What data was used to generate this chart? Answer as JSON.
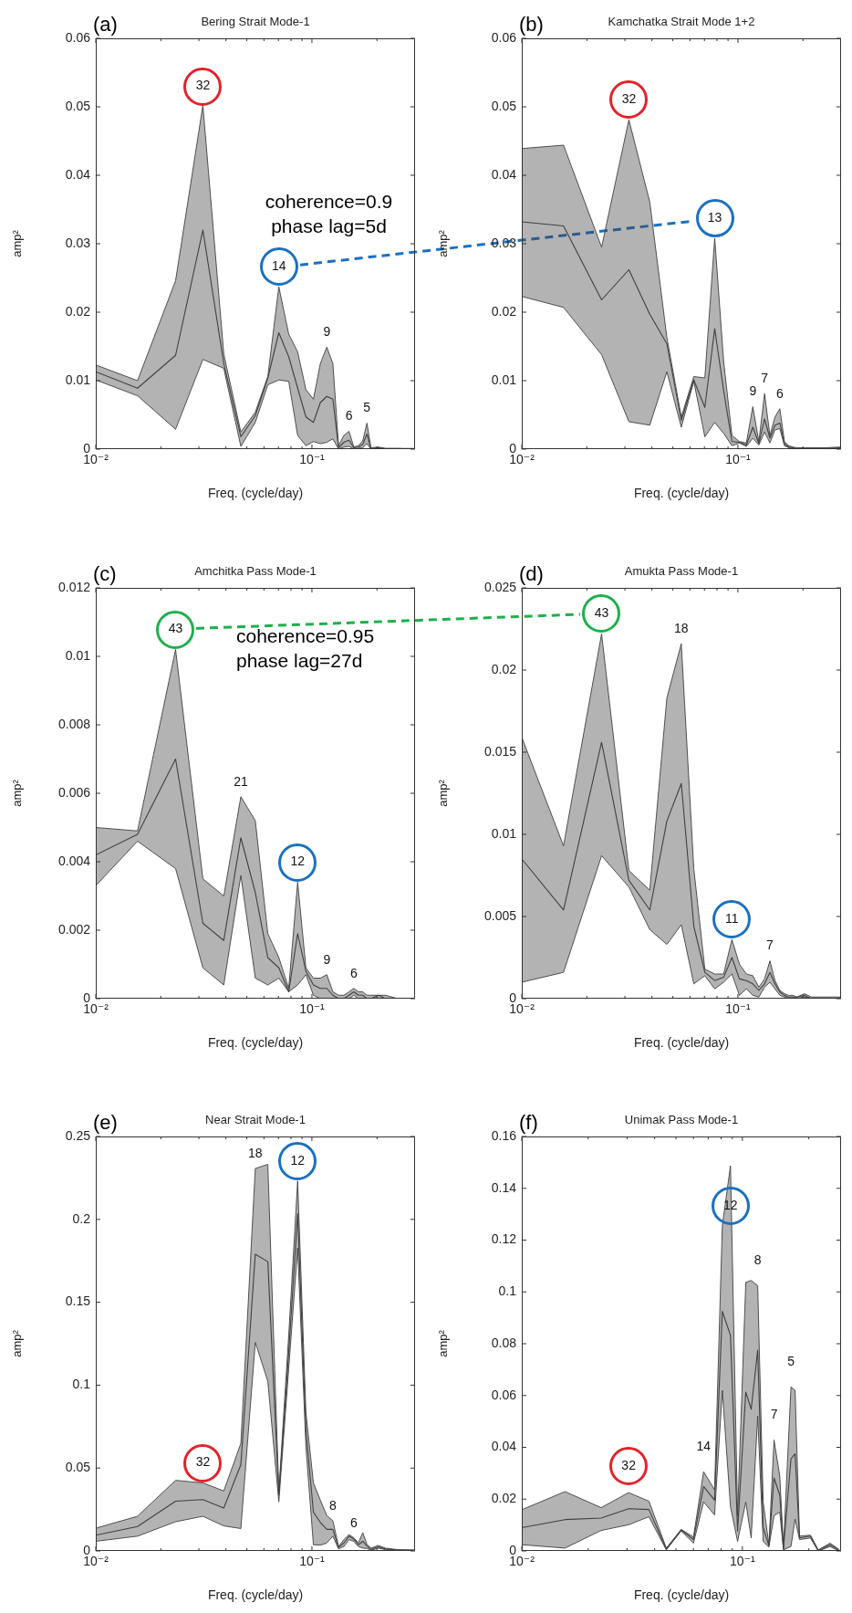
{
  "chart_data": [
    {
      "type": "line",
      "title": "Bering Strait Mode-1",
      "xlabel": "Freq. (cycle/day)",
      "ylabel": "amp²",
      "log": "x",
      "marker": "none",
      "xlim": [
        0.01,
        0.3
      ],
      "xticks": [
        {
          "value": 0.01,
          "label": "10⁻²"
        },
        {
          "value": 0.02,
          "label": null
        },
        {
          "value": 0.03,
          "label": null
        },
        {
          "value": 0.04,
          "label": null
        },
        {
          "value": 0.05,
          "label": null
        },
        {
          "value": 0.06,
          "label": null
        },
        {
          "value": 0.07,
          "label": null
        },
        {
          "value": 0.08,
          "label": null
        },
        {
          "value": 0.09,
          "label": null
        },
        {
          "value": 0.1,
          "label": "10⁻¹"
        },
        {
          "value": 0.2,
          "label": null
        }
      ],
      "ylim": [
        0,
        0.06
      ],
      "yticks": [
        0,
        0.01,
        0.02,
        0.03,
        0.04,
        0.05,
        0.06
      ],
      "x": [
        0.01,
        0.0156,
        0.0234,
        0.0313,
        0.0391,
        0.0469,
        0.0547,
        0.0625,
        0.0703,
        0.0781,
        0.0859,
        0.0938,
        0.1016,
        0.1094,
        0.1172,
        0.125,
        0.1328,
        0.1406,
        0.1484,
        0.1563,
        0.1641,
        0.1719,
        0.1797,
        0.1875,
        0.2031,
        0.2188,
        0.25,
        0.2969
      ],
      "series": [
        {
          "color": "#404040",
          "values": [
            0.0113,
            0.0089,
            0.0137,
            0.032,
            0.0125,
            0.0018,
            0.0049,
            0.0104,
            0.017,
            0.0135,
            0.0089,
            0.0047,
            0.0039,
            0.0068,
            0.0077,
            0.0073,
            0.0002,
            0.001,
            0.0013,
            0.0002,
            0.0003,
            0.0007,
            0.0022,
            0.0001,
            0.0002,
            0.0001,
            0.0001,
            0
          ],
          "upper": [
            0.0123,
            0.01,
            0.0246,
            0.0502,
            0.0139,
            0.0025,
            0.0054,
            0.0106,
            0.0237,
            0.0168,
            0.0142,
            0.0087,
            0.0073,
            0.0125,
            0.0149,
            0.0125,
            0.0005,
            0.002,
            0.0026,
            0.0003,
            0.0005,
            0.0012,
            0.0038,
            0.0002,
            0.0003,
            0.0001,
            0.0001,
            0.0001
          ],
          "lower": [
            0.0101,
            0.0078,
            0.0029,
            0.0131,
            0.0118,
            0.0004,
            0.0039,
            0.0094,
            0.0101,
            0.0099,
            0.002,
            0.0005,
            0.0011,
            0.0008,
            0.001,
            0.0015,
            0,
            0.0003,
            0.0004,
            0,
            0.0001,
            0.0002,
            0.0008,
            0,
            0.0001,
            0,
            0,
            0
          ]
        }
      ],
      "annotations": [
        "(a)",
        {
          "text": "32",
          "x": 0.0313,
          "y": 0.0502
        },
        {
          "text": "14",
          "x": 0.0703,
          "y": 0.0237
        },
        {
          "text": "9",
          "x": 0.1172,
          "y": 0.0149
        },
        {
          "text": "6",
          "x": 0.1484,
          "y": 0.0026
        },
        {
          "text": "5",
          "x": 0.1797,
          "y": 0.0038
        },
        "coherence=0.9",
        "phase lag=5d"
      ]
    },
    {
      "type": "line",
      "title": "Kamchatka Strait Mode 1+2",
      "xlabel": "Freq. (cycle/day)",
      "ylabel": "amp²",
      "log": "x",
      "marker": "none",
      "xlim": [
        0.01,
        0.3
      ],
      "xticks": [
        {
          "value": 0.01,
          "label": "10⁻²"
        },
        {
          "value": 0.02,
          "label": null
        },
        {
          "value": 0.03,
          "label": null
        },
        {
          "value": 0.04,
          "label": null
        },
        {
          "value": 0.05,
          "label": null
        },
        {
          "value": 0.06,
          "label": null
        },
        {
          "value": 0.07,
          "label": null
        },
        {
          "value": 0.08,
          "label": null
        },
        {
          "value": 0.09,
          "label": null
        },
        {
          "value": 0.1,
          "label": "10⁻¹"
        },
        {
          "value": 0.2,
          "label": null
        }
      ],
      "ylim": [
        0,
        0.06
      ],
      "yticks": [
        0,
        0.01,
        0.02,
        0.03,
        0.04,
        0.05,
        0.06
      ],
      "x": [
        0.01,
        0.0156,
        0.0234,
        0.0313,
        0.0391,
        0.0469,
        0.0547,
        0.0625,
        0.0703,
        0.0781,
        0.0859,
        0.0938,
        0.1016,
        0.1094,
        0.1172,
        0.125,
        0.1328,
        0.1406,
        0.1484,
        0.1563,
        0.1641,
        0.1719,
        0.1797,
        0.1875,
        0.2031,
        0.2188,
        0.25,
        0.2969
      ],
      "series": [
        {
          "color": "#404040",
          "values": [
            0.0332,
            0.0326,
            0.0218,
            0.0262,
            0.0197,
            0.0154,
            0.0042,
            0.0101,
            0.0061,
            0.0176,
            0.0085,
            0.0011,
            0.001,
            0.0006,
            0.0032,
            0.0008,
            0.0044,
            0.0016,
            0.0035,
            0.0038,
            0.0008,
            0.0003,
            0.0002,
            0.0001,
            0.0001,
            0.0001,
            0.0001,
            0.0002
          ],
          "upper": [
            0.0439,
            0.0444,
            0.0295,
            0.0481,
            0.0361,
            0.0163,
            0.0047,
            0.0106,
            0.0104,
            0.0308,
            0.0128,
            0.002,
            0.0011,
            0.0009,
            0.0062,
            0.0011,
            0.0081,
            0.002,
            0.0047,
            0.0059,
            0.0011,
            0.0005,
            0.0003,
            0.0002,
            0.0002,
            0.0002,
            0.0002,
            0.0003
          ],
          "lower": [
            0.0223,
            0.0207,
            0.0138,
            0.004,
            0.0035,
            0.0113,
            0.0032,
            0.0099,
            0.0018,
            0.0039,
            0.0023,
            0.0005,
            0.0009,
            0.0004,
            0.0016,
            0.0006,
            0.0025,
            0.0009,
            0.0028,
            0.003,
            0.0005,
            0.0002,
            0.0001,
            0,
            0,
            0,
            0,
            0.0001
          ]
        }
      ],
      "annotations": [
        "(b)",
        {
          "text": "32",
          "x": 0.0313,
          "y": 0.0481
        },
        {
          "text": "13",
          "x": 0.0781,
          "y": 0.0308
        },
        {
          "text": "9",
          "x": 0.1172,
          "y": 0.0062
        },
        {
          "text": "7",
          "x": 0.1328,
          "y": 0.0081
        },
        {
          "text": "6",
          "x": 0.1563,
          "y": 0.0059
        }
      ]
    },
    {
      "type": "line",
      "title": "Amchitka Pass Mode-1",
      "xlabel": "Freq. (cycle/day)",
      "ylabel": "amp²",
      "log": "x",
      "marker": "none",
      "xlim": [
        0.01,
        0.3
      ],
      "xticks": [
        {
          "value": 0.01,
          "label": "10⁻²"
        },
        {
          "value": 0.02,
          "label": null
        },
        {
          "value": 0.03,
          "label": null
        },
        {
          "value": 0.04,
          "label": null
        },
        {
          "value": 0.05,
          "label": null
        },
        {
          "value": 0.06,
          "label": null
        },
        {
          "value": 0.07,
          "label": null
        },
        {
          "value": 0.08,
          "label": null
        },
        {
          "value": 0.09,
          "label": null
        },
        {
          "value": 0.1,
          "label": "10⁻¹"
        },
        {
          "value": 0.2,
          "label": null
        }
      ],
      "ylim": [
        0,
        0.012
      ],
      "yticks": [
        0,
        0.002,
        0.004,
        0.006,
        0.008,
        0.01,
        0.012
      ],
      "x": [
        0.01,
        0.0156,
        0.0234,
        0.0313,
        0.0391,
        0.0469,
        0.0547,
        0.0625,
        0.0703,
        0.0781,
        0.0859,
        0.0938,
        0.1016,
        0.1094,
        0.1172,
        0.125,
        0.1328,
        0.1406,
        0.1484,
        0.1563,
        0.1641,
        0.1719,
        0.1797,
        0.1875,
        0.2031,
        0.2188,
        0.25,
        0.2969
      ],
      "series": [
        {
          "color": "#404040",
          "values": [
            0.0042,
            0.0048,
            0.007,
            0.0022,
            0.0017,
            0.0047,
            0.0031,
            0.0012,
            0.0009,
            0.0002,
            0.0019,
            0.0008,
            0.0004,
            0.0003,
            0.0003,
            0.0001,
            0,
            0,
            0.0001,
            0.0002,
            0.0001,
            0.0001,
            0,
            0,
            0.0001,
            0,
            0,
            0
          ],
          "upper": [
            0.005,
            0.0049,
            0.0102,
            0.0035,
            0.003,
            0.0059,
            0.0052,
            0.0019,
            0.0012,
            0.0003,
            0.0034,
            0.0009,
            0.0006,
            0.0006,
            0.0007,
            0.0002,
            0.0001,
            0.0001,
            0.0002,
            0.0003,
            0.0002,
            0.0002,
            0.0001,
            0.0001,
            0.0001,
            0.0001,
            0,
            0
          ],
          "lower": [
            0.0033,
            0.0046,
            0.0038,
            0.0009,
            0.0004,
            0.0036,
            0.0006,
            0.0004,
            0.0006,
            0.0002,
            0.0004,
            0.0007,
            0.0001,
            0,
            0,
            0,
            0,
            0,
            0,
            0.0001,
            0,
            0,
            0,
            0,
            0,
            0,
            0,
            0
          ]
        }
      ],
      "annotations": [
        "(c)",
        {
          "text": "43",
          "x": 0.0234,
          "y": 0.0102
        },
        {
          "text": "21",
          "x": 0.0469,
          "y": 0.0059
        },
        {
          "text": "12",
          "x": 0.0859,
          "y": 0.0034
        },
        {
          "text": "9",
          "x": 0.1172,
          "y": 0.0007
        },
        {
          "text": "6",
          "x": 0.1563,
          "y": 0.0003
        },
        "coherence=0.95",
        "phase lag=27d"
      ]
    },
    {
      "type": "line",
      "title": "Amukta Pass Mode-1",
      "xlabel": "Freq. (cycle/day)",
      "ylabel": "amp²",
      "log": "x",
      "marker": "none",
      "xlim": [
        0.01,
        0.3
      ],
      "xticks": [
        {
          "value": 0.01,
          "label": "10⁻²"
        },
        {
          "value": 0.02,
          "label": null
        },
        {
          "value": 0.03,
          "label": null
        },
        {
          "value": 0.04,
          "label": null
        },
        {
          "value": 0.05,
          "label": null
        },
        {
          "value": 0.06,
          "label": null
        },
        {
          "value": 0.07,
          "label": null
        },
        {
          "value": 0.08,
          "label": null
        },
        {
          "value": 0.09,
          "label": null
        },
        {
          "value": 0.1,
          "label": "10⁻¹"
        },
        {
          "value": 0.2,
          "label": null
        }
      ],
      "ylim": [
        0,
        0.025
      ],
      "yticks": [
        0,
        0.005,
        0.01,
        0.015,
        0.02,
        0.025
      ],
      "x": [
        0.01,
        0.0156,
        0.0234,
        0.0313,
        0.0391,
        0.0469,
        0.0547,
        0.0625,
        0.0703,
        0.0781,
        0.0859,
        0.0938,
        0.1016,
        0.1094,
        0.1172,
        0.125,
        0.1328,
        0.1406,
        0.1484,
        0.1563,
        0.1641,
        0.1719,
        0.1797,
        0.1875,
        0.2031,
        0.2188,
        0.25,
        0.2969
      ],
      "series": [
        {
          "color": "#404040",
          "values": [
            0.0085,
            0.0054,
            0.0156,
            0.0072,
            0.0054,
            0.0108,
            0.0131,
            0.0044,
            0.0016,
            0.0011,
            0.0013,
            0.0025,
            0.0012,
            0.0011,
            0.0009,
            0.0005,
            0.0009,
            0.0016,
            0.0009,
            0.0004,
            0.0002,
            0.0001,
            0.0001,
            0.0001,
            0.0002,
            0,
            0,
            0
          ],
          "upper": [
            0.0159,
            0.0093,
            0.0222,
            0.0078,
            0.0066,
            0.0183,
            0.0216,
            0.0079,
            0.0018,
            0.0015,
            0.0015,
            0.0036,
            0.0021,
            0.0015,
            0.0014,
            0.0007,
            0.0012,
            0.0023,
            0.0011,
            0.0005,
            0.0003,
            0.0002,
            0.0002,
            0.0001,
            0.0003,
            0.0001,
            0.0001,
            0.0001
          ],
          "lower": [
            0.001,
            0.0016,
            0.0087,
            0.0068,
            0.0042,
            0.0033,
            0.0045,
            0.0009,
            0.0014,
            0.0006,
            0.001,
            0.0015,
            0.0002,
            0.0006,
            0.0002,
            0.0001,
            0.0007,
            0.001,
            0.0006,
            0.0002,
            0.0001,
            0,
            0,
            0,
            0.0001,
            0,
            0,
            0
          ]
        }
      ],
      "annotations": [
        "(d)",
        {
          "text": "43",
          "x": 0.0234,
          "y": 0.0222
        },
        {
          "text": "18",
          "x": 0.0547,
          "y": 0.0216
        },
        {
          "text": "11",
          "x": 0.0938,
          "y": 0.0036
        },
        {
          "text": "7",
          "x": 0.1406,
          "y": 0.0023
        }
      ]
    },
    {
      "type": "line",
      "title": "Near Strait Mode-1",
      "xlabel": "Freq. (cycle/day)",
      "ylabel": "amp²",
      "log": "x",
      "marker": "none",
      "xlim": [
        0.01,
        0.3
      ],
      "xticks": [
        {
          "value": 0.01,
          "label": "10⁻²"
        },
        {
          "value": 0.02,
          "label": null
        },
        {
          "value": 0.03,
          "label": null
        },
        {
          "value": 0.04,
          "label": null
        },
        {
          "value": 0.05,
          "label": null
        },
        {
          "value": 0.06,
          "label": null
        },
        {
          "value": 0.07,
          "label": null
        },
        {
          "value": 0.08,
          "label": null
        },
        {
          "value": 0.09,
          "label": null
        },
        {
          "value": 0.1,
          "label": "10⁻¹"
        },
        {
          "value": 0.2,
          "label": null
        }
      ],
      "ylim": [
        0,
        0.25
      ],
      "yticks": [
        0,
        0.05,
        0.1,
        0.15,
        0.2,
        0.25
      ],
      "x": [
        0.01,
        0.0156,
        0.0234,
        0.0313,
        0.0391,
        0.0469,
        0.0547,
        0.0625,
        0.0703,
        0.0781,
        0.0859,
        0.0938,
        0.1016,
        0.1094,
        0.1172,
        0.125,
        0.1328,
        0.1406,
        0.1484,
        0.1563,
        0.1641,
        0.1719,
        0.1797,
        0.1875,
        0.2031,
        0.2188,
        0.25,
        0.2969
      ],
      "series": [
        {
          "color": "#404040",
          "values": [
            0.0095,
            0.0147,
            0.03,
            0.031,
            0.0259,
            0.052,
            0.179,
            0.1745,
            0.0337,
            0.12,
            0.2034,
            0.073,
            0.0234,
            0.0172,
            0.013,
            0.013,
            0.0021,
            0.0048,
            0.0089,
            0.0072,
            0.0037,
            0.0058,
            0.003,
            0.001,
            0.0025,
            0.0012,
            0.0004,
            0.0004
          ],
          "upper": [
            0.0137,
            0.0209,
            0.0426,
            0.041,
            0.0362,
            0.0648,
            0.2307,
            0.2332,
            0.0358,
            0.13,
            0.2231,
            0.0834,
            0.041,
            0.0306,
            0.0213,
            0.0182,
            0.0027,
            0.0068,
            0.0099,
            0.0079,
            0.0048,
            0.011,
            0.004,
            0.0017,
            0.0033,
            0.0017,
            0.0008,
            0.0006
          ],
          "lower": [
            0.0058,
            0.0089,
            0.0176,
            0.0209,
            0.0151,
            0.0135,
            0.1258,
            0.1024,
            0.0296,
            0.11,
            0.1827,
            0.0627,
            0.0037,
            0.0035,
            0.0048,
            0.0089,
            0.0012,
            0.0027,
            0.0068,
            0.0058,
            0.0027,
            0.0017,
            0.0015,
            0.0004,
            0.0017,
            0.0008,
            0.0002,
            0.0002
          ]
        }
      ],
      "annotations": [
        "(e)",
        {
          "text": "18",
          "x": 0.0547,
          "y": 0.2307
        },
        {
          "text": "12",
          "x": 0.0859,
          "y": 0.2231
        },
        {
          "text": "32",
          "x": 0.0313,
          "y": 0.041
        },
        {
          "text": "8",
          "x": 0.125,
          "y": 0.0182
        },
        {
          "text": "6",
          "x": 0.1563,
          "y": 0.0079
        }
      ]
    },
    {
      "type": "line",
      "title": "Unimak Pass Mode-1",
      "xlabel": "Freq. (cycle/day)",
      "ylabel": "amp²",
      "log": "x",
      "marker": "none",
      "xlim": [
        0.01,
        0.28
      ],
      "xticks": [
        {
          "value": 0.01,
          "label": "10⁻²"
        },
        {
          "value": 0.02,
          "label": null
        },
        {
          "value": 0.03,
          "label": null
        },
        {
          "value": 0.04,
          "label": null
        },
        {
          "value": 0.05,
          "label": null
        },
        {
          "value": 0.06,
          "label": null
        },
        {
          "value": 0.07,
          "label": null
        },
        {
          "value": 0.08,
          "label": null
        },
        {
          "value": 0.09,
          "label": null
        },
        {
          "value": 0.1,
          "label": "10⁻¹"
        },
        {
          "value": 0.2,
          "label": null
        }
      ],
      "ylim": [
        0,
        0.16
      ],
      "yticks": [
        0,
        0.02,
        0.04,
        0.06,
        0.08,
        0.1,
        0.12,
        0.14,
        0.16
      ],
      "x": [
        0.01,
        0.0157,
        0.0229,
        0.0305,
        0.0377,
        0.0452,
        0.0528,
        0.06,
        0.0667,
        0.0748,
        0.0811,
        0.0883,
        0.0951,
        0.1036,
        0.1096,
        0.1173,
        0.1242,
        0.1319,
        0.1391,
        0.1477,
        0.1535,
        0.166,
        0.1733,
        0.1815,
        0.2034,
        0.2206,
        0.2497,
        0.273
      ],
      "series": [
        {
          "color": "#404040",
          "values": [
            0.009,
            0.0121,
            0.0127,
            0.0163,
            0.016,
            0.0007,
            0.0081,
            0.0044,
            0.0249,
            0.0196,
            0.0925,
            0.0832,
            0.0077,
            0.0613,
            0.0547,
            0.0775,
            0.009,
            0.002,
            0.0282,
            0.0216,
            0.0007,
            0.0355,
            0.0375,
            0.005,
            0.0057,
            0.0001,
            0.0024,
            0.0004
          ],
          "upper": [
            0.0159,
            0.0229,
            0.0167,
            0.0225,
            0.0192,
            0.0011,
            0.0083,
            0.0054,
            0.0306,
            0.0236,
            0.1256,
            0.1487,
            0.0136,
            0.1037,
            0.1044,
            0.1024,
            0.0189,
            0.0024,
            0.0428,
            0.0289,
            0.0011,
            0.0633,
            0.062,
            0.0057,
            0.0061,
            0.0004,
            0.003,
            0.0007
          ],
          "lower": [
            0.0024,
            0.0011,
            0.0079,
            0.0101,
            0.0132,
            0.0004,
            0.0077,
            0.003,
            0.0189,
            0.0139,
            0.062,
            0.017,
            0.0037,
            0.0189,
            0.005,
            0.0521,
            0.0037,
            0.0015,
            0.0136,
            0.015,
            0.0004,
            0.0017,
            0.0123,
            0.0044,
            0.005,
            0,
            0.0017,
            0.0001
          ]
        }
      ],
      "annotations": [
        "(f)",
        {
          "text": "12",
          "x": 0.0883,
          "y": 0.1487
        },
        {
          "text": "8",
          "x": 0.1173,
          "y": 0.1024
        },
        {
          "text": "14",
          "x": 0.0667,
          "y": 0.0306
        },
        {
          "text": "32",
          "x": 0.0305,
          "y": 0.0225
        },
        {
          "text": "7",
          "x": 0.1391,
          "y": 0.0428
        },
        {
          "text": "5",
          "x": 0.166,
          "y": 0.0633
        }
      ]
    }
  ]
}
